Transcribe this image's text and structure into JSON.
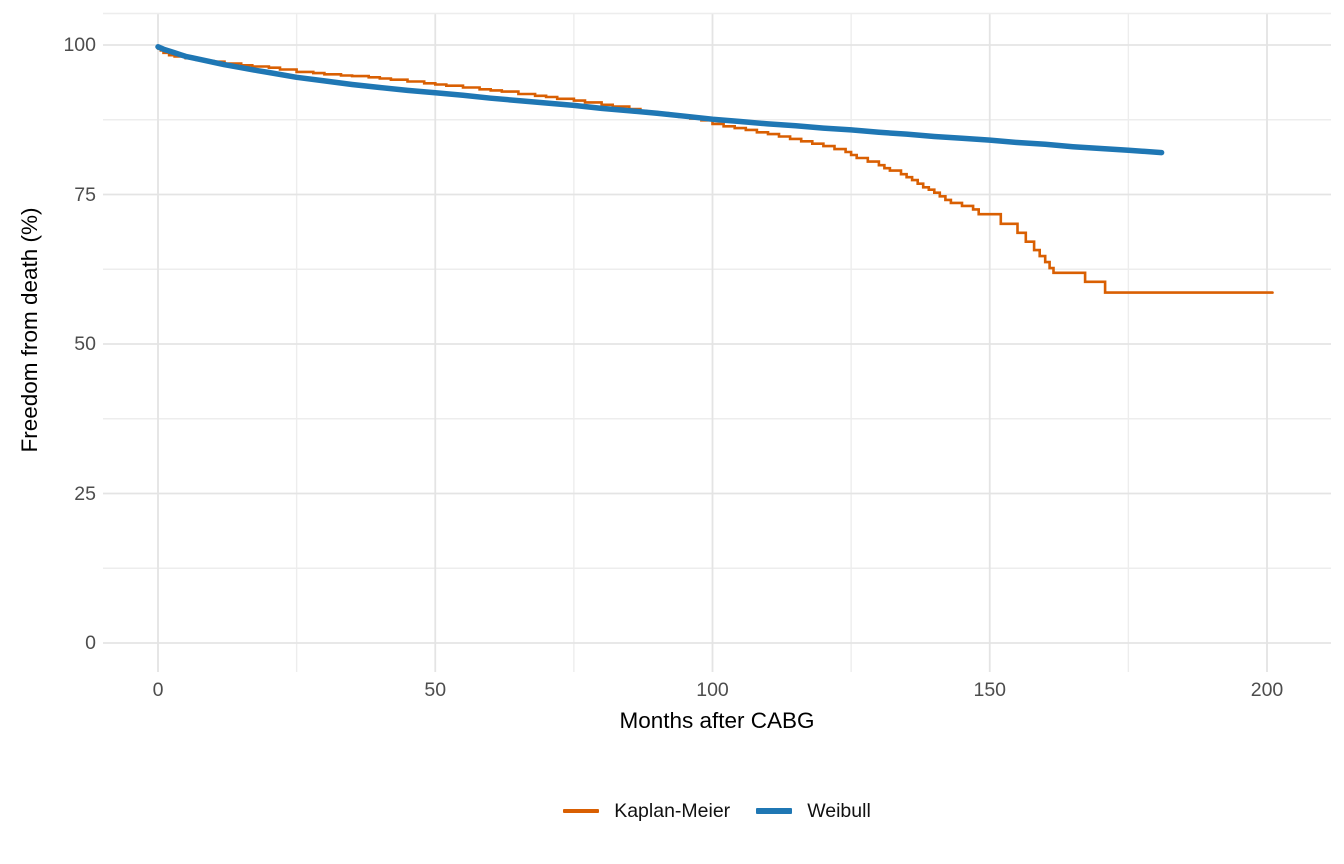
{
  "chart_data": {
    "type": "line",
    "title": "",
    "xlabel": "Months after CABG",
    "ylabel": "Freedom from death (%)",
    "xlim": [
      -10,
      212
    ],
    "ylim": [
      -5.3,
      105.3
    ],
    "x_ticks": [
      0,
      50,
      100,
      150,
      200
    ],
    "x_minor_ticks": [
      25,
      75,
      125,
      175
    ],
    "y_ticks": [
      0,
      25,
      50,
      75,
      100
    ],
    "y_minor_ticks": [
      12.5,
      37.5,
      62.5,
      87.5
    ],
    "grid": true,
    "legend_position": "bottom",
    "series": [
      {
        "name": "Kaplan-Meier",
        "color": "#D95F02",
        "line_width": 2.6,
        "style": "step",
        "points": [
          [
            0,
            99.4
          ],
          [
            0.5,
            99.1
          ],
          [
            1,
            98.7
          ],
          [
            2,
            98.3
          ],
          [
            3,
            98.1
          ],
          [
            5,
            97.8
          ],
          [
            7,
            97.5
          ],
          [
            9,
            97.3
          ],
          [
            10,
            97.2
          ],
          [
            12,
            96.9
          ],
          [
            15,
            96.6
          ],
          [
            17,
            96.4
          ],
          [
            20,
            96.2
          ],
          [
            22,
            95.9
          ],
          [
            25,
            95.5
          ],
          [
            28,
            95.3
          ],
          [
            30,
            95.1
          ],
          [
            33,
            94.9
          ],
          [
            35,
            94.8
          ],
          [
            38,
            94.6
          ],
          [
            40,
            94.4
          ],
          [
            42,
            94.2
          ],
          [
            45,
            93.9
          ],
          [
            48,
            93.6
          ],
          [
            50,
            93.4
          ],
          [
            52,
            93.2
          ],
          [
            55,
            92.9
          ],
          [
            58,
            92.6
          ],
          [
            60,
            92.4
          ],
          [
            62,
            92.2
          ],
          [
            65,
            91.8
          ],
          [
            68,
            91.5
          ],
          [
            70,
            91.3
          ],
          [
            72,
            91.0
          ],
          [
            75,
            90.7
          ],
          [
            77,
            90.4
          ],
          [
            80,
            90.0
          ],
          [
            82,
            89.7
          ],
          [
            85,
            89.3
          ],
          [
            87,
            89.0
          ],
          [
            88,
            88.8
          ],
          [
            90,
            88.6
          ],
          [
            92,
            88.3
          ],
          [
            94,
            88.0
          ],
          [
            96,
            87.7
          ],
          [
            98,
            87.4
          ],
          [
            100,
            86.8
          ],
          [
            102,
            86.4
          ],
          [
            104,
            86.1
          ],
          [
            106,
            85.8
          ],
          [
            108,
            85.4
          ],
          [
            110,
            85.1
          ],
          [
            112,
            84.7
          ],
          [
            114,
            84.3
          ],
          [
            116,
            83.9
          ],
          [
            118,
            83.5
          ],
          [
            120,
            83.1
          ],
          [
            122,
            82.6
          ],
          [
            124,
            82.1
          ],
          [
            125,
            81.6
          ],
          [
            126,
            81.1
          ],
          [
            128,
            80.5
          ],
          [
            130,
            79.9
          ],
          [
            131,
            79.4
          ],
          [
            132,
            79.0
          ],
          [
            134,
            78.4
          ],
          [
            135,
            77.9
          ],
          [
            136,
            77.4
          ],
          [
            137,
            76.8
          ],
          [
            138,
            76.2
          ],
          [
            139,
            75.8
          ],
          [
            140,
            75.3
          ],
          [
            141,
            74.7
          ],
          [
            142,
            74.1
          ],
          [
            143,
            73.6
          ],
          [
            145,
            73.1
          ],
          [
            147,
            72.5
          ],
          [
            148,
            71.7
          ],
          [
            152,
            70.1
          ],
          [
            155,
            68.6
          ],
          [
            156.5,
            67.1
          ],
          [
            158,
            65.7
          ],
          [
            159,
            64.7
          ],
          [
            160,
            63.7
          ],
          [
            160.8,
            62.7
          ],
          [
            161.5,
            61.9
          ],
          [
            166.8,
            61.9
          ],
          [
            167.2,
            60.4
          ],
          [
            170.4,
            60.4
          ],
          [
            170.8,
            58.6
          ],
          [
            201,
            58.6
          ]
        ]
      },
      {
        "name": "Weibull",
        "color": "#1F77B4",
        "line_width": 5.5,
        "style": "smooth",
        "points": [
          [
            0,
            99.7
          ],
          [
            1,
            99.3
          ],
          [
            2,
            99.0
          ],
          [
            3,
            98.7
          ],
          [
            4,
            98.4
          ],
          [
            5,
            98.1
          ],
          [
            6,
            97.9
          ],
          [
            8,
            97.5
          ],
          [
            10,
            97.1
          ],
          [
            12,
            96.7
          ],
          [
            15,
            96.2
          ],
          [
            18,
            95.7
          ],
          [
            20,
            95.4
          ],
          [
            25,
            94.6
          ],
          [
            30,
            94.0
          ],
          [
            35,
            93.4
          ],
          [
            40,
            92.9
          ],
          [
            45,
            92.4
          ],
          [
            50,
            92.0
          ],
          [
            55,
            91.6
          ],
          [
            60,
            91.1
          ],
          [
            65,
            90.7
          ],
          [
            70,
            90.3
          ],
          [
            75,
            89.9
          ],
          [
            80,
            89.4
          ],
          [
            85,
            89.0
          ],
          [
            90,
            88.6
          ],
          [
            95,
            88.1
          ],
          [
            100,
            87.6
          ],
          [
            105,
            87.2
          ],
          [
            110,
            86.8
          ],
          [
            115,
            86.5
          ],
          [
            120,
            86.1
          ],
          [
            125,
            85.8
          ],
          [
            130,
            85.4
          ],
          [
            135,
            85.1
          ],
          [
            140,
            84.7
          ],
          [
            145,
            84.4
          ],
          [
            150,
            84.1
          ],
          [
            155,
            83.7
          ],
          [
            160,
            83.4
          ],
          [
            165,
            83.0
          ],
          [
            170,
            82.7
          ],
          [
            175,
            82.4
          ],
          [
            181,
            82.0
          ]
        ]
      }
    ]
  },
  "colors": {
    "background": "#FFFFFF",
    "grid_major": "#E4E4E4",
    "grid_minor": "#EDEDED",
    "tick_label": "#4D4D4D",
    "axis_title": "#000000"
  }
}
